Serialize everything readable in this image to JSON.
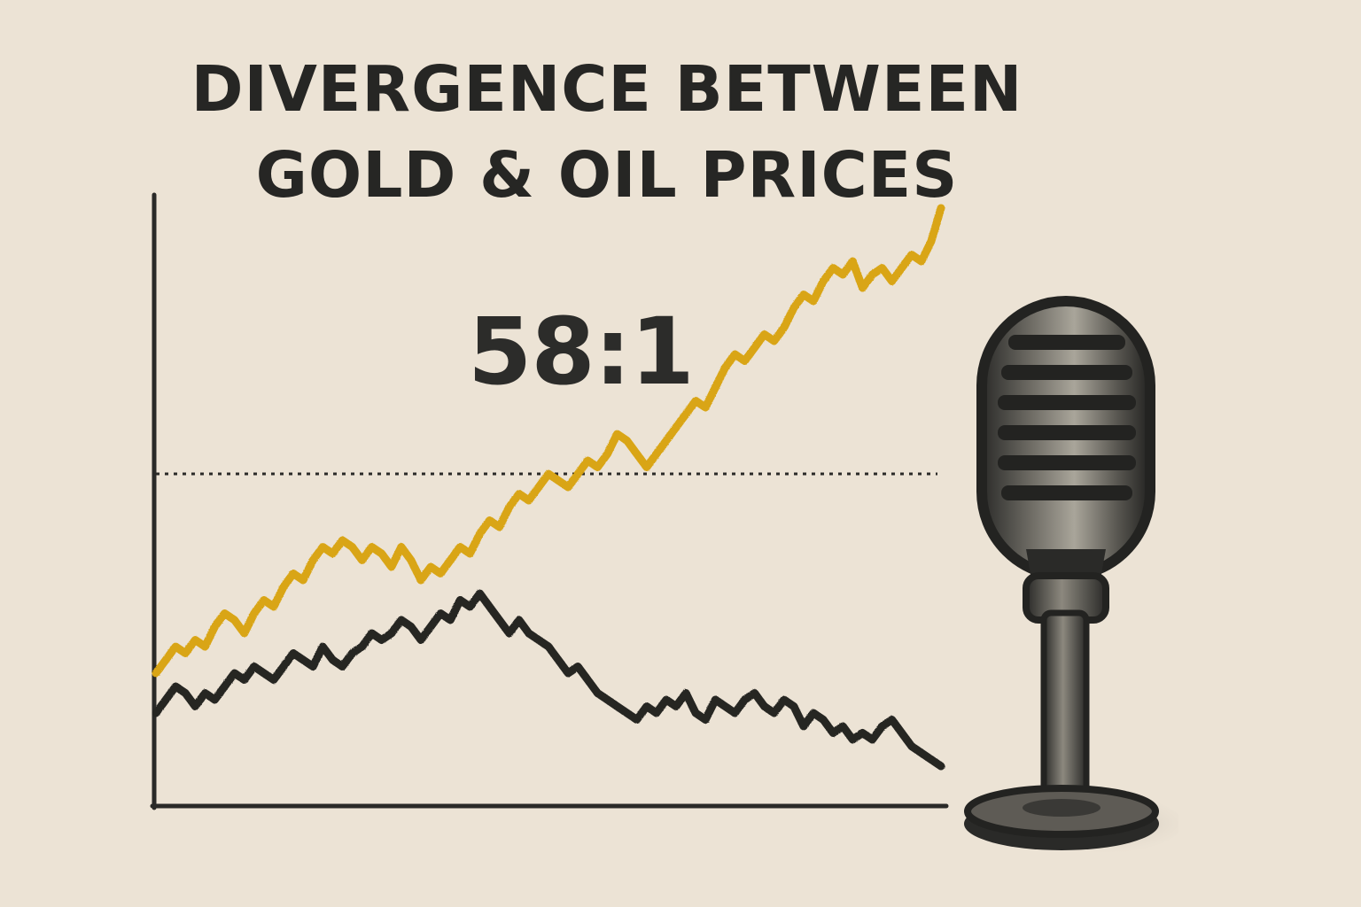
{
  "chart_data": {
    "type": "line",
    "title": "DIVERGENCE BETWEEN GOLD & OIL PRICES",
    "annotation": "58:1",
    "xlabel": "",
    "ylabel": "",
    "ylim": [
      0,
      100
    ],
    "grid": false,
    "legend": "none",
    "reference_line": {
      "y": 50,
      "style": "dotted"
    },
    "x": [
      0,
      1,
      2,
      3,
      4,
      5,
      6,
      7,
      8,
      9,
      10,
      11,
      12,
      13,
      14,
      15,
      16,
      17,
      18,
      19,
      20,
      21,
      22,
      23,
      24,
      25,
      26,
      27,
      28,
      29,
      30,
      31,
      32,
      33,
      34,
      35,
      36,
      37,
      38,
      39,
      40,
      41,
      42,
      43,
      44,
      45,
      46,
      47,
      48,
      49,
      50,
      51,
      52,
      53,
      54,
      55,
      56,
      57,
      58,
      59,
      60,
      61,
      62,
      63,
      64,
      65,
      66,
      67,
      68,
      69,
      70,
      71,
      72,
      73,
      74,
      75,
      76,
      77,
      78,
      79,
      80
    ],
    "series": [
      {
        "color": "#d9a514",
        "values": [
          20,
          22,
          24,
          23,
          25,
          24,
          27,
          29,
          28,
          26,
          29,
          31,
          30,
          33,
          35,
          34,
          37,
          39,
          38,
          40,
          39,
          37,
          39,
          38,
          36,
          39,
          37,
          34,
          36,
          35,
          37,
          39,
          38,
          41,
          43,
          42,
          45,
          47,
          46,
          48,
          50,
          49,
          48,
          50,
          52,
          51,
          53,
          56,
          55,
          53,
          51,
          53,
          55,
          57,
          59,
          61,
          60,
          63,
          66,
          68,
          67,
          69,
          71,
          70,
          72,
          75,
          77,
          76,
          79,
          81,
          80,
          82,
          78,
          80,
          81,
          79,
          81,
          83,
          82,
          85,
          90
        ]
      },
      {
        "color": "#262624",
        "values": [
          14,
          16,
          18,
          17,
          15,
          17,
          16,
          18,
          20,
          19,
          21,
          20,
          19,
          21,
          23,
          22,
          21,
          24,
          22,
          21,
          23,
          24,
          26,
          25,
          26,
          28,
          27,
          25,
          27,
          29,
          28,
          31,
          30,
          32,
          30,
          28,
          26,
          28,
          26,
          25,
          24,
          22,
          20,
          21,
          19,
          17,
          16,
          15,
          14,
          13,
          15,
          14,
          16,
          15,
          17,
          14,
          13,
          16,
          15,
          14,
          16,
          17,
          15,
          14,
          16,
          15,
          12,
          14,
          13,
          11,
          12,
          10,
          11,
          10,
          12,
          13,
          11,
          9,
          8,
          7,
          6
        ]
      }
    ]
  }
}
